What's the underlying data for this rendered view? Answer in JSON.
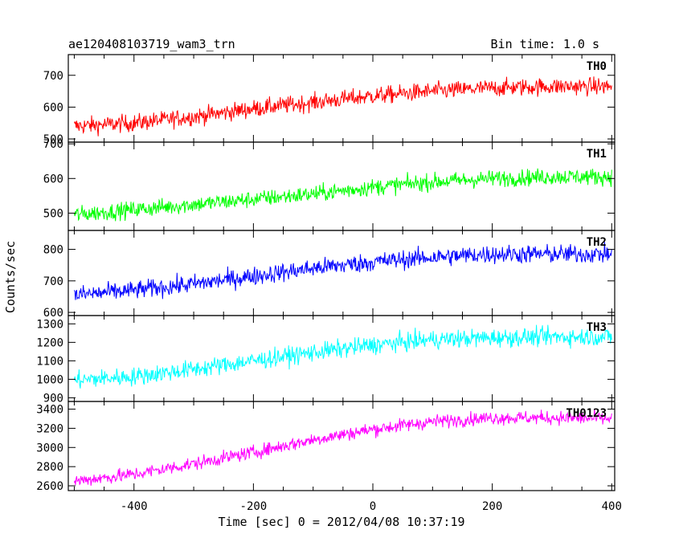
{
  "chart_data": {
    "type": "line",
    "title": "ae120408103719_wam3_trn",
    "subtitle": "Bin time: 1.0 s",
    "xlabel": "Time [sec] 0 = 2012/04/08 10:37:19",
    "ylabel": "Counts/sec",
    "xlim": [
      -510,
      405
    ],
    "x_ticks": [
      "-400",
      "-200",
      "0",
      "200",
      "400"
    ],
    "grid": false,
    "panels": [
      {
        "name": "TH0",
        "color": "#ff0000",
        "ylim": [
          490,
          765
        ],
        "y_ticks": [
          "500",
          "600",
          "700"
        ],
        "trend": {
          "x": [
            -500,
            -400,
            -300,
            -200,
            -100,
            0,
            100,
            200,
            300,
            400
          ],
          "y": [
            540,
            550,
            570,
            595,
            615,
            635,
            650,
            660,
            665,
            665
          ]
        },
        "noise": 25
      },
      {
        "name": "TH1",
        "color": "#00ff00",
        "ylim": [
          450,
          705
        ],
        "y_ticks": [
          "500",
          "600",
          "700"
        ],
        "trend": {
          "x": [
            -500,
            -400,
            -300,
            -200,
            -100,
            0,
            100,
            200,
            300,
            400
          ],
          "y": [
            495,
            510,
            525,
            540,
            555,
            575,
            590,
            600,
            605,
            605
          ]
        },
        "noise": 22
      },
      {
        "name": "TH2",
        "color": "#0000ff",
        "ylim": [
          590,
          860
        ],
        "y_ticks": [
          "600",
          "700",
          "800"
        ],
        "trend": {
          "x": [
            -500,
            -400,
            -300,
            -200,
            -100,
            0,
            100,
            200,
            300,
            400
          ],
          "y": [
            655,
            670,
            690,
            715,
            740,
            760,
            775,
            785,
            785,
            785
          ]
        },
        "noise": 27
      },
      {
        "name": "TH3",
        "color": "#00ffff",
        "ylim": [
          880,
          1345
        ],
        "y_ticks": [
          "900",
          "1000",
          "1100",
          "1200",
          "1300"
        ],
        "trend": {
          "x": [
            -500,
            -400,
            -300,
            -200,
            -100,
            0,
            100,
            200,
            300,
            400
          ],
          "y": [
            995,
            1015,
            1055,
            1100,
            1145,
            1185,
            1215,
            1225,
            1230,
            1230
          ]
        },
        "noise": 45
      },
      {
        "name": "TH0123",
        "color": "#ff00ff",
        "ylim": [
          2550,
          3480
        ],
        "y_ticks": [
          "2600",
          "2800",
          "3000",
          "3200",
          "3400"
        ],
        "trend": {
          "x": [
            -500,
            -400,
            -300,
            -200,
            -100,
            0,
            100,
            200,
            300,
            400
          ],
          "y": [
            2650,
            2720,
            2830,
            2950,
            3080,
            3190,
            3270,
            3310,
            3310,
            3300
          ]
        },
        "noise": 65
      }
    ]
  }
}
